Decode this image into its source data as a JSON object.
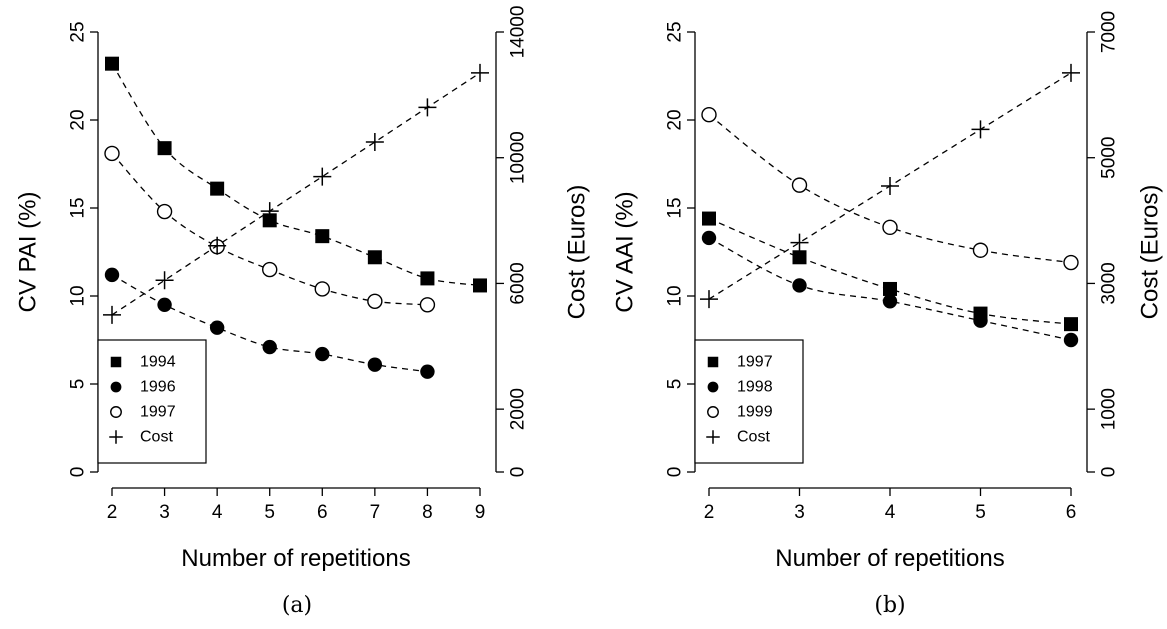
{
  "chart_data": [
    {
      "type": "line",
      "panel": "a",
      "caption": "(a)",
      "xlabel": "Number of repetitions",
      "ylabel_left": "CV PAI (%)",
      "ylabel_right": "Cost (Euros)",
      "x_ticks": [
        2,
        3,
        4,
        5,
        6,
        7,
        8,
        9
      ],
      "xlim": [
        2,
        9
      ],
      "y_left_ticks": [
        0,
        5,
        10,
        15,
        20,
        25
      ],
      "ylim_left": [
        0,
        25
      ],
      "y_right_ticks": [
        0,
        2000,
        6000,
        10000,
        14000
      ],
      "ylim_right": [
        0,
        14000
      ],
      "legend_position": "bottom-left",
      "series": [
        {
          "name": "1994",
          "marker": "filled-square",
          "axis": "left",
          "x": [
            2,
            3,
            4,
            5,
            6,
            7,
            8,
            9
          ],
          "values": [
            23.2,
            18.4,
            16.1,
            14.3,
            13.4,
            12.2,
            11.0,
            10.6
          ]
        },
        {
          "name": "1996",
          "marker": "filled-circle",
          "axis": "left",
          "x": [
            2,
            3,
            4,
            5,
            6,
            7,
            8
          ],
          "values": [
            11.2,
            9.5,
            8.2,
            7.1,
            6.7,
            6.1,
            5.7
          ]
        },
        {
          "name": "1997",
          "marker": "open-circle",
          "axis": "left",
          "x": [
            2,
            3,
            4,
            5,
            6,
            7,
            8
          ],
          "values": [
            18.1,
            14.8,
            12.8,
            11.5,
            10.4,
            9.7,
            9.5
          ]
        },
        {
          "name": "Cost",
          "marker": "plus",
          "axis": "right",
          "x": [
            2,
            3,
            4,
            5,
            6,
            7,
            8,
            9
          ],
          "values": [
            5000,
            6100,
            7200,
            8300,
            9400,
            10500,
            11600,
            12700
          ]
        }
      ]
    },
    {
      "type": "line",
      "panel": "b",
      "caption": "(b)",
      "xlabel": "Number of repetitions",
      "ylabel_left": "CV AAI (%)",
      "ylabel_right": "Cost (Euros)",
      "x_ticks": [
        2,
        3,
        4,
        5,
        6
      ],
      "xlim": [
        2,
        6
      ],
      "y_left_ticks": [
        0,
        5,
        10,
        15,
        20,
        25
      ],
      "ylim_left": [
        0,
        25
      ],
      "y_right_ticks": [
        0,
        1000,
        3000,
        5000,
        7000
      ],
      "ylim_right": [
        0,
        7000
      ],
      "legend_position": "bottom-left",
      "series": [
        {
          "name": "1997",
          "marker": "filled-square",
          "axis": "left",
          "x": [
            2,
            3,
            4,
            5,
            6
          ],
          "values": [
            14.4,
            12.2,
            10.4,
            9.0,
            8.4
          ]
        },
        {
          "name": "1998",
          "marker": "filled-circle",
          "axis": "left",
          "x": [
            2,
            3,
            4,
            5,
            6
          ],
          "values": [
            13.3,
            10.6,
            9.7,
            8.6,
            7.5
          ]
        },
        {
          "name": "1999",
          "marker": "open-circle",
          "axis": "left",
          "x": [
            2,
            3,
            4,
            5,
            6
          ],
          "values": [
            20.3,
            16.3,
            13.9,
            12.6,
            11.9
          ]
        },
        {
          "name": "Cost",
          "marker": "plus",
          "axis": "right",
          "x": [
            2,
            3,
            4,
            5,
            6
          ],
          "values": [
            2750,
            3650,
            4550,
            5450,
            6350
          ]
        }
      ]
    }
  ]
}
